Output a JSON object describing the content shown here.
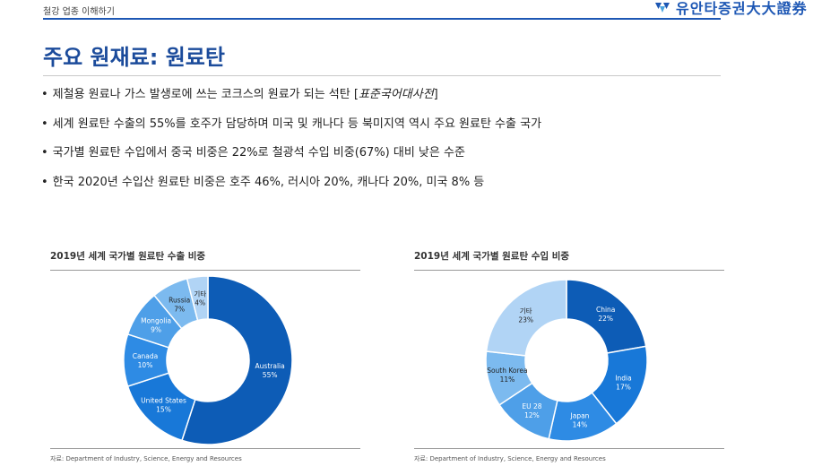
{
  "header": {
    "label": "철강 업종 이해하기",
    "logo_text": "유안타증권大大證券"
  },
  "title": "주요 원재료: 원료탄",
  "bullets": [
    {
      "bullet": "•",
      "text": "제철용 원료나 가스 발생로에 쓰는 코크스의 원료가 되는 석탄 [",
      "italic": "표준국어대사전",
      "close": "]"
    },
    {
      "bullet": "•",
      "text": "세계 원료탄 수출의 55%를 호주가 담당하며 미국 및 캐나다 등 북미지역 역시 주요 원료탄 수출 국가"
    },
    {
      "bullet": "•",
      "text": "국가별 원료탄 수입에서 중국 비중은 22%로 철광석 수입 비중(67%) 대비 낮은 수준"
    },
    {
      "bullet": "•",
      "text": "한국 2020년 수입산 원료탄 비중은 호주 46%, 러시아 20%, 캐나다 20%, 미국 8% 등"
    }
  ],
  "colors": {
    "brand": "#1d57b4",
    "title": "#1b4b9b"
  },
  "chart_data": [
    {
      "type": "pie",
      "donut": true,
      "title": "2019년 세계 국가별 원료탄 수출 비중",
      "source": "자료: Department of Industry, Science, Energy and Resources",
      "categories": [
        "Australia",
        "United States",
        "Canada",
        "Mongolia",
        "Russia",
        "기타"
      ],
      "values": [
        55,
        15,
        10,
        9,
        7,
        4
      ],
      "value_labels": [
        "55%",
        "15%",
        "10%",
        "9%",
        "7%",
        "4%"
      ],
      "colors": [
        "#0d5cb6",
        "#1878d8",
        "#2e8be4",
        "#4e9fe8",
        "#7cbaef",
        "#b1d4f5"
      ]
    },
    {
      "type": "pie",
      "donut": true,
      "title": "2019년 세계 국가별 원료탄 수입 비중",
      "source": "자료: Department of Industry, Science, Energy and Resources",
      "categories": [
        "China",
        "India",
        "Japan",
        "EU 28",
        "South Korea",
        "기타"
      ],
      "values": [
        22,
        17,
        14,
        12,
        11,
        23
      ],
      "value_labels": [
        "22%",
        "17%",
        "14%",
        "12%",
        "11%",
        "23%"
      ],
      "colors": [
        "#0d5cb6",
        "#1878d8",
        "#2e8be4",
        "#4e9fe8",
        "#7cbaef",
        "#b1d4f5"
      ]
    }
  ]
}
